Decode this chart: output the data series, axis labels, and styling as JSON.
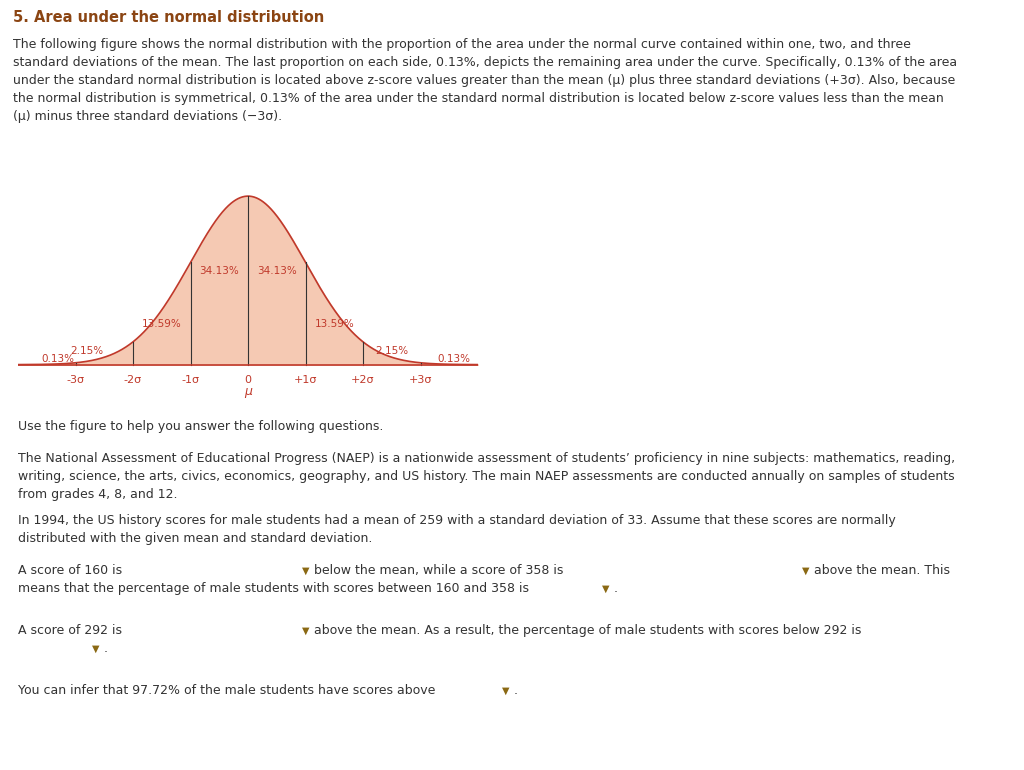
{
  "title": "5. Area under the normal distribution",
  "title_color": "#8B4513",
  "paragraph1_lines": [
    "The following figure shows the normal distribution with the proportion of the area under the normal curve contained within one, two, and three",
    "standard deviations of the mean. The last proportion on each side, 0.13%, depicts the remaining area under the curve. Specifically, 0.13% of the area",
    "under the standard normal distribution is located above z-score values greater than the mean (μ) plus three standard deviations (+3σ). Also, because",
    "the normal distribution is symmetrical, 0.13% of the area under the standard normal distribution is located below z-score values less than the mean",
    "(μ) minus three standard deviations (−3σ)."
  ],
  "teal_bar_color": "#6dbfbf",
  "curve_fill_color": "#f5c9b3",
  "curve_line_color": "#c0392b",
  "axis_line_color": "#c0392b",
  "vline_color": "#333333",
  "label_color": "#c0392b",
  "percentages_left": [
    "0.13%",
    "2.15%",
    "13.59%",
    "34.13%"
  ],
  "percentages_right": [
    "34.13%",
    "13.59%",
    "2.15%",
    "0.13%"
  ],
  "xtick_labels": [
    "-3σ",
    "-2σ",
    "-1σ",
    "0",
    "+1σ",
    "+2σ",
    "+3σ"
  ],
  "mu_label": "μ",
  "paragraph_use": "Use the figure to help you answer the following questions.",
  "paragraph_naep_lines": [
    "The National Assessment of Educational Progress (NAEP) is a nationwide assessment of students’ proficiency in nine subjects: mathematics, reading,",
    "writing, science, the arts, civics, economics, geography, and US history. The main NAEP assessments are conducted annually on samples of students",
    "from grades 4, 8, and 12."
  ],
  "paragraph_1994_lines": [
    "In 1994, the US history scores for male students had a mean of 259 with a standard deviation of 33. Assume that these scores are normally",
    "distributed with the given mean and standard deviation."
  ],
  "text_color": "#333333",
  "dropdown_color": "#8B6914",
  "underline_color": "#8B6914",
  "body_fontsize": 9.0,
  "title_fontsize": 10.5
}
